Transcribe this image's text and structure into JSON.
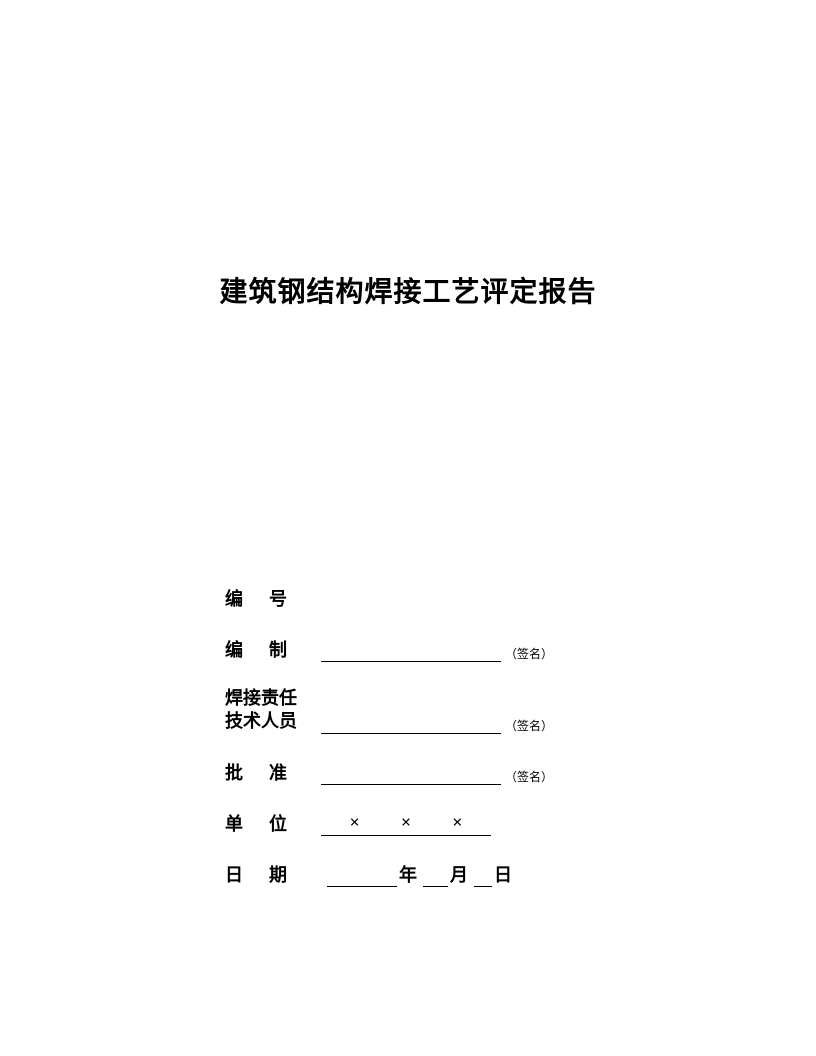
{
  "title": "建筑钢结构焊接工艺评定报告",
  "form": {
    "number_label": "编号",
    "author_label": "编制",
    "author_note": "（签名）",
    "welding_responsible_line1": "焊接责任",
    "welding_responsible_line2": "技术人员",
    "welding_note": "（签名）",
    "approval_label": "批准",
    "approval_note": "（签名）",
    "unit_label": "单位",
    "unit_x1": "×",
    "unit_x2": "×",
    "unit_x3": "×",
    "date_label": "日期",
    "date_year": "年",
    "date_month": "月",
    "date_day": "日"
  },
  "colors": {
    "background": "#ffffff",
    "text": "#000000",
    "underline": "#000000"
  },
  "typography": {
    "title_fontsize": 28,
    "label_fontsize": 18,
    "note_fontsize": 12,
    "font_family": "SimSun"
  }
}
